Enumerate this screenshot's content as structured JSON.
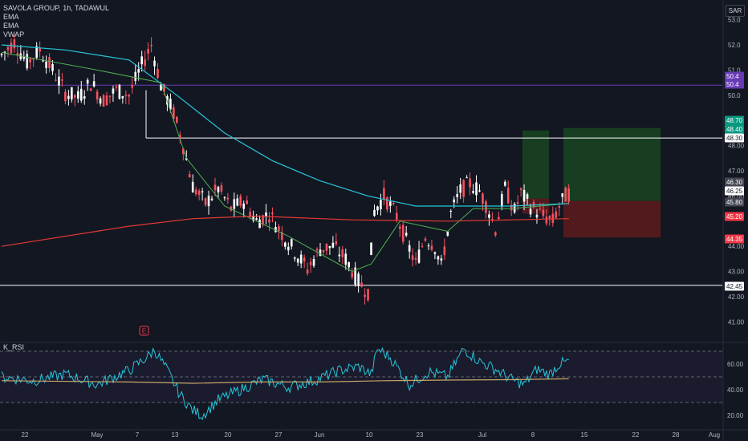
{
  "header": {
    "symbol_line": "SAVOLA GROUP, 1h, TADAWUL",
    "indicators": [
      "EMA",
      "EMA",
      "VWAP"
    ],
    "currency": "SAR"
  },
  "rsi_panel": {
    "title": "K_RSI"
  },
  "earnings_marker": {
    "label": "E"
  },
  "colors": {
    "background": "#131722",
    "up_candle": "#ffffff",
    "down_candle": "#f7525f",
    "ema_fast": "#4caf50",
    "ema_slow": "#26c6da",
    "ema_long": "#e53935",
    "vwap": "#673ab7",
    "rsi_line": "#26c6da",
    "rsi_signal": "#c9a66b",
    "target_zone": "#1b5e20",
    "stop_zone": "#7f1d1d"
  },
  "chart_data": [
    {
      "type": "candlestick",
      "title": "SAVOLA GROUP, 1h, TADAWUL",
      "x_tick_labels": [
        "22",
        "May",
        "7",
        "13",
        "20",
        "27",
        "Jun",
        "10",
        "23",
        "Jul",
        "8",
        "15",
        "22",
        "28",
        "Aug"
      ],
      "y_tick_labels": [
        "53.0",
        "52.0",
        "51.0",
        "50.0",
        "48.00",
        "47.00",
        "46.00",
        "44.00",
        "43.00",
        "42.00",
        "41.00"
      ],
      "ylim": [
        40.5,
        53.3
      ],
      "price_path": [
        [
          0,
          51.6
        ],
        [
          4,
          52.1
        ],
        [
          8,
          51.3
        ],
        [
          12,
          51.8
        ],
        [
          16,
          51.0
        ],
        [
          20,
          50.1
        ],
        [
          24,
          49.9
        ],
        [
          28,
          50.5
        ],
        [
          32,
          49.8
        ],
        [
          36,
          50.2
        ],
        [
          40,
          50.0
        ],
        [
          44,
          51.2
        ],
        [
          47,
          52.0
        ],
        [
          50,
          50.4
        ],
        [
          54,
          49.3
        ],
        [
          57,
          48.0
        ],
        [
          60,
          46.4
        ],
        [
          64,
          45.7
        ],
        [
          68,
          46.3
        ],
        [
          72,
          45.5
        ],
        [
          76,
          45.8
        ],
        [
          80,
          45.0
        ],
        [
          84,
          45.3
        ],
        [
          88,
          44.5
        ],
        [
          92,
          43.8
        ],
        [
          96,
          43.1
        ],
        [
          100,
          43.9
        ],
        [
          104,
          44.0
        ],
        [
          108,
          43.5
        ],
        [
          112,
          42.6
        ],
        [
          115,
          42.2
        ],
        [
          117,
          45.4
        ],
        [
          120,
          46.0
        ],
        [
          124,
          45.2
        ],
        [
          127,
          44.2
        ],
        [
          130,
          43.3
        ],
        [
          133,
          44.4
        ],
        [
          136,
          44.0
        ],
        [
          138,
          43.2
        ],
        [
          141,
          45.3
        ],
        [
          144,
          46.2
        ],
        [
          147,
          46.5
        ],
        [
          150,
          46.2
        ],
        [
          153,
          45.4
        ],
        [
          155,
          44.7
        ],
        [
          158,
          46.3
        ],
        [
          161,
          45.4
        ],
        [
          163,
          46.1
        ],
        [
          166,
          45.6
        ],
        [
          170,
          45.2
        ],
        [
          173,
          45.0
        ],
        [
          175,
          45.6
        ],
        [
          177,
          46.0
        ],
        [
          178,
          46.1
        ]
      ],
      "series": [
        {
          "name": "EMA",
          "values": [
            [
              0,
              51.7
            ],
            [
              30,
              51.0
            ],
            [
              50,
              50.5
            ],
            [
              58,
              47.5
            ],
            [
              70,
              45.6
            ],
            [
              90,
              44.4
            ],
            [
              110,
              43.0
            ],
            [
              116,
              43.3
            ],
            [
              125,
              45.0
            ],
            [
              140,
              44.6
            ],
            [
              148,
              45.5
            ],
            [
              160,
              45.5
            ],
            [
              178,
              45.7
            ]
          ]
        },
        {
          "name": "EMA",
          "values": [
            [
              0,
              52.0
            ],
            [
              20,
              51.8
            ],
            [
              40,
              51.4
            ],
            [
              55,
              50.0
            ],
            [
              70,
              48.5
            ],
            [
              85,
              47.4
            ],
            [
              100,
              46.6
            ],
            [
              115,
              46.0
            ],
            [
              130,
              45.6
            ],
            [
              140,
              45.6
            ],
            [
              160,
              45.6
            ],
            [
              178,
              45.7
            ]
          ]
        },
        {
          "name": "VWAP",
          "values": [
            [
              0,
              44.0
            ],
            [
              40,
              44.8
            ],
            [
              60,
              45.1
            ],
            [
              80,
              45.2
            ],
            [
              110,
              45.05
            ],
            [
              140,
              45.0
            ],
            [
              160,
              45.05
            ],
            [
              178,
              45.1
            ]
          ]
        }
      ],
      "horizontal_lines": [
        {
          "value": 50.4,
          "label": "50.4",
          "color": "#673ab7"
        },
        {
          "value": 48.3,
          "label": "48.30",
          "color": "#ffffff"
        },
        {
          "value": 42.45,
          "label": "42.45",
          "color": "#ffffff"
        }
      ],
      "price_badges": [
        {
          "label": "50.4",
          "color": "#673ab7"
        },
        {
          "label": "50.4",
          "color": "#673ab7"
        },
        {
          "label": "48.70",
          "color": "#089981"
        },
        {
          "label": "48.40",
          "color": "#089981"
        },
        {
          "label": "48.30",
          "color": "#ffffff"
        },
        {
          "label": "46.30",
          "color": "#434651"
        },
        {
          "label": "46.25",
          "color": "#ffffff"
        },
        {
          "label": "45.80",
          "color": "#434651"
        },
        {
          "label": "45.20",
          "color": "#f23645"
        },
        {
          "label": "44.35",
          "color": "#f23645"
        },
        {
          "label": "42.45",
          "color": "#ffffff"
        }
      ],
      "positions": [
        {
          "entry": 45.9,
          "target": 48.6,
          "stop": 45.3
        },
        {
          "entry": 45.8,
          "target": 48.7,
          "stop": 44.35
        }
      ]
    },
    {
      "type": "line",
      "title": "K_RSI",
      "y_tick_labels": [
        "60.00",
        "40.00",
        "20.00"
      ],
      "ylim": [
        15,
        75
      ],
      "levels": [
        70,
        50,
        30
      ],
      "series": [
        {
          "name": "K_RSI",
          "values": [
            [
              0,
              50
            ],
            [
              10,
              47
            ],
            [
              20,
              52
            ],
            [
              30,
              44
            ],
            [
              40,
              55
            ],
            [
              46,
              66
            ],
            [
              48,
              71
            ],
            [
              52,
              55
            ],
            [
              56,
              36
            ],
            [
              60,
              24
            ],
            [
              63,
              20
            ],
            [
              68,
              32
            ],
            [
              75,
              40
            ],
            [
              82,
              48
            ],
            [
              90,
              42
            ],
            [
              98,
              47
            ],
            [
              106,
              55
            ],
            [
              112,
              58
            ],
            [
              116,
              52
            ],
            [
              118,
              72
            ],
            [
              122,
              65
            ],
            [
              128,
              44
            ],
            [
              134,
              54
            ],
            [
              140,
              50
            ],
            [
              145,
              72
            ],
            [
              150,
              62
            ],
            [
              155,
              56
            ],
            [
              160,
              48
            ],
            [
              164,
              44
            ],
            [
              168,
              56
            ],
            [
              172,
              52
            ],
            [
              175,
              60
            ],
            [
              178,
              62
            ]
          ]
        },
        {
          "name": "signal",
          "values": [
            [
              0,
              47
            ],
            [
              40,
              46
            ],
            [
              60,
              45
            ],
            [
              80,
              46
            ],
            [
              100,
              46
            ],
            [
              120,
              47
            ],
            [
              140,
              47.5
            ],
            [
              160,
              47.8
            ],
            [
              178,
              48.5
            ]
          ]
        }
      ]
    }
  ]
}
